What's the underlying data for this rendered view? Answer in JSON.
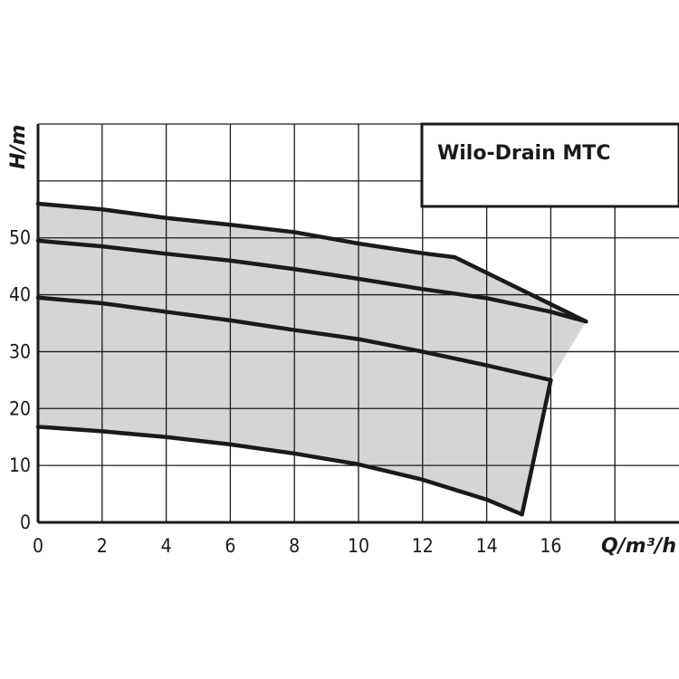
{
  "chart_data": {
    "type": "line",
    "title": "Wilo-Drain MTC",
    "xlabel": "Q/m³/h",
    "ylabel": "H/m",
    "xlim": [
      0,
      20
    ],
    "ylim": [
      0,
      70
    ],
    "grid": true,
    "x_ticks": [
      0,
      2,
      4,
      6,
      8,
      10,
      12,
      14,
      16
    ],
    "y_ticks": [
      0,
      10,
      20,
      30,
      40,
      50
    ],
    "operating_area_fill": "#d4d5d7",
    "series": [
      {
        "x": [
          0,
          2,
          4,
          6,
          8,
          10,
          12,
          13,
          17.1
        ],
        "y": [
          56,
          55,
          53.5,
          52.3,
          51,
          49,
          47.3,
          46.6,
          35.3
        ]
      },
      {
        "x": [
          0,
          2,
          4,
          6,
          8,
          10,
          12,
          14,
          16,
          17.1
        ],
        "y": [
          49.5,
          48.5,
          47.2,
          46,
          44.5,
          42.8,
          41,
          39.4,
          37,
          35.3
        ]
      },
      {
        "x": [
          0,
          2,
          4,
          6,
          8,
          10,
          12,
          14,
          16
        ],
        "y": [
          39.5,
          38.5,
          37,
          35.5,
          33.8,
          32.2,
          30,
          27.6,
          25
        ]
      },
      {
        "x": [
          0,
          2,
          4,
          6,
          8,
          10,
          12,
          14,
          15.1
        ],
        "y": [
          16.8,
          16,
          15,
          13.7,
          12.1,
          10.2,
          7.5,
          4,
          1.4
        ]
      }
    ]
  }
}
